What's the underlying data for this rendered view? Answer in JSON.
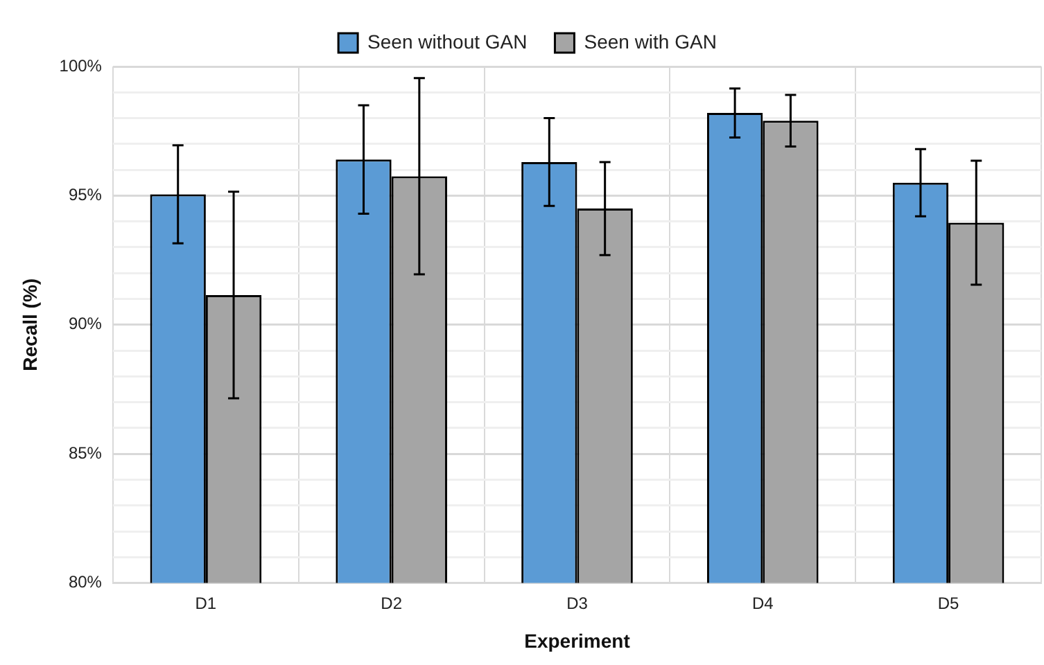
{
  "chart_data": {
    "type": "bar",
    "xlabel": "Experiment",
    "ylabel": "Recall (%)",
    "categories": [
      "D1",
      "D2",
      "D3",
      "D4",
      "D5"
    ],
    "series": [
      {
        "name": "Seen without GAN",
        "color": "#5b9bd5",
        "values": [
          95.05,
          96.4,
          96.3,
          98.2,
          95.5
        ],
        "errors": [
          1.9,
          2.1,
          1.7,
          0.95,
          1.3
        ]
      },
      {
        "name": "Seen with GAN",
        "color": "#a5a5a5",
        "values": [
          91.15,
          95.75,
          94.5,
          97.9,
          93.95
        ],
        "errors": [
          4,
          3.8,
          1.8,
          1,
          2.4
        ]
      }
    ],
    "ylim": [
      80,
      100
    ],
    "yticks": [
      {
        "value": 80,
        "label": "80%"
      },
      {
        "value": 81,
        "label": null
      },
      {
        "value": 82,
        "label": null
      },
      {
        "value": 83,
        "label": null
      },
      {
        "value": 84,
        "label": null
      },
      {
        "value": 85,
        "label": "85%"
      },
      {
        "value": 86,
        "label": null
      },
      {
        "value": 87,
        "label": null
      },
      {
        "value": 88,
        "label": null
      },
      {
        "value": 89,
        "label": null
      },
      {
        "value": 90,
        "label": "90%"
      },
      {
        "value": 91,
        "label": null
      },
      {
        "value": 92,
        "label": null
      },
      {
        "value": 93,
        "label": null
      },
      {
        "value": 94,
        "label": null
      },
      {
        "value": 95,
        "label": "95%"
      },
      {
        "value": 96,
        "label": null
      },
      {
        "value": 97,
        "label": null
      },
      {
        "value": 98,
        "label": null
      },
      {
        "value": 99,
        "label": null
      },
      {
        "value": 100,
        "label": "100%"
      }
    ],
    "grid": true,
    "legend": "top"
  }
}
